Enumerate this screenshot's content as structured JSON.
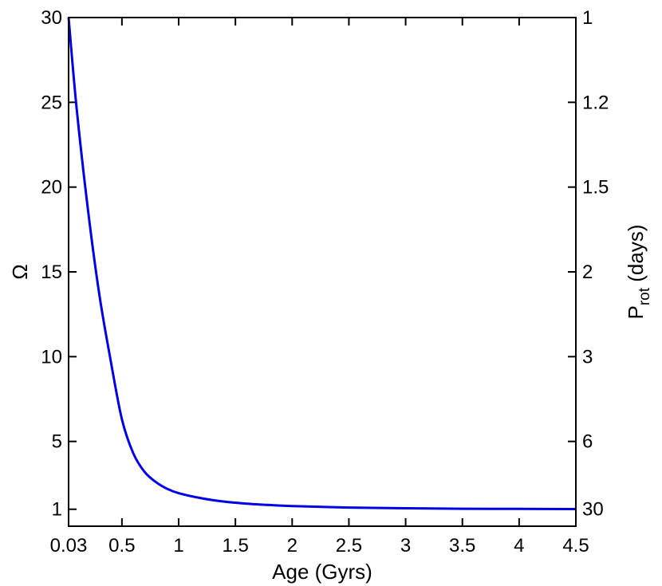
{
  "chart_data": {
    "type": "line",
    "xlabel": "Age (Gyrs)",
    "ylabel": "Ω",
    "y2label": {
      "main": "P",
      "sub": "rot",
      "rest": " (days)"
    },
    "xlim": [
      0.03,
      4.5
    ],
    "ylim": [
      0,
      30
    ],
    "x_ticks": [
      {
        "value": 0.03,
        "label": "0.03"
      },
      {
        "value": 0.5,
        "label": "0.5"
      },
      {
        "value": 1,
        "label": "1"
      },
      {
        "value": 1.5,
        "label": "1.5"
      },
      {
        "value": 2,
        "label": "2"
      },
      {
        "value": 2.5,
        "label": "2.5"
      },
      {
        "value": 3,
        "label": "3"
      },
      {
        "value": 3.5,
        "label": "3.5"
      },
      {
        "value": 4,
        "label": "4"
      },
      {
        "value": 4.5,
        "label": "4.5"
      }
    ],
    "y_ticks": [
      {
        "value": 1,
        "label": "1"
      },
      {
        "value": 5,
        "label": "5"
      },
      {
        "value": 10,
        "label": "10"
      },
      {
        "value": 15,
        "label": "15"
      },
      {
        "value": 20,
        "label": "20"
      },
      {
        "value": 25,
        "label": "25"
      },
      {
        "value": 30,
        "label": "30"
      }
    ],
    "y2_ticks": [
      {
        "omega": 30,
        "label": "1"
      },
      {
        "omega": 25,
        "label": "1.2"
      },
      {
        "omega": 20,
        "label": "1.5"
      },
      {
        "omega": 15,
        "label": "2"
      },
      {
        "omega": 10,
        "label": "3"
      },
      {
        "omega": 5,
        "label": "6"
      },
      {
        "omega": 1,
        "label": "30"
      }
    ],
    "series": [
      {
        "color": "#0000e6",
        "x": [
          0.03,
          0.1,
          0.2,
          0.3,
          0.4,
          0.5,
          0.6,
          0.7,
          0.8,
          0.9,
          1.0,
          1.2,
          1.4,
          1.6,
          1.8,
          2.0,
          2.5,
          3.0,
          3.5,
          4.0,
          4.5
        ],
        "y": [
          30.0,
          24.7,
          18.7,
          13.7,
          9.8,
          6.3,
          4.3,
          3.2,
          2.6,
          2.2,
          1.95,
          1.65,
          1.45,
          1.33,
          1.25,
          1.19,
          1.1,
          1.06,
          1.03,
          1.02,
          1.01
        ]
      }
    ]
  }
}
